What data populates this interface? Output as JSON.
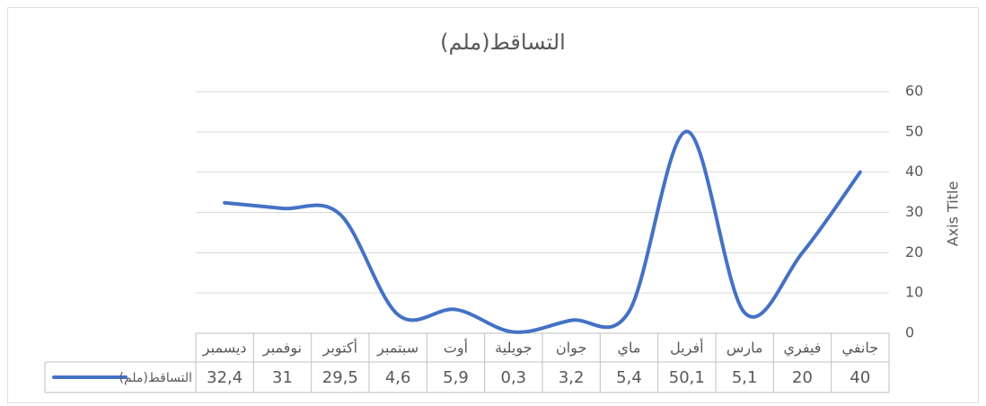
{
  "chart_data": {
    "type": "line",
    "title": "التساقط(ملم)",
    "y_axis_label": "Axis Title",
    "categories": [
      "جانفي",
      "فيفري",
      "مارس",
      "أفريل",
      "ماي",
      "جوان",
      "جويلية",
      "أوت",
      "سبتمبر",
      "أكتوبر",
      "نوفمبر",
      "ديسمبر"
    ],
    "series": [
      {
        "name": "التساقط(ملم)",
        "color": "#4472c4",
        "values": [
          40,
          20,
          5.1,
          50.1,
          5.4,
          3.2,
          0.3,
          5.9,
          4.6,
          29.5,
          31,
          32.4
        ],
        "value_labels": [
          "40",
          "20",
          "5,1",
          "50,1",
          "5,4",
          "3,2",
          "0,3",
          "5,9",
          "4,6",
          "29,5",
          "31",
          "32,4"
        ]
      }
    ],
    "ylim": [
      0,
      60
    ],
    "yticks": [
      0,
      10,
      20,
      30,
      40,
      50,
      60
    ],
    "grid": true,
    "smooth": true,
    "x_reversed": true,
    "data_table": true
  }
}
